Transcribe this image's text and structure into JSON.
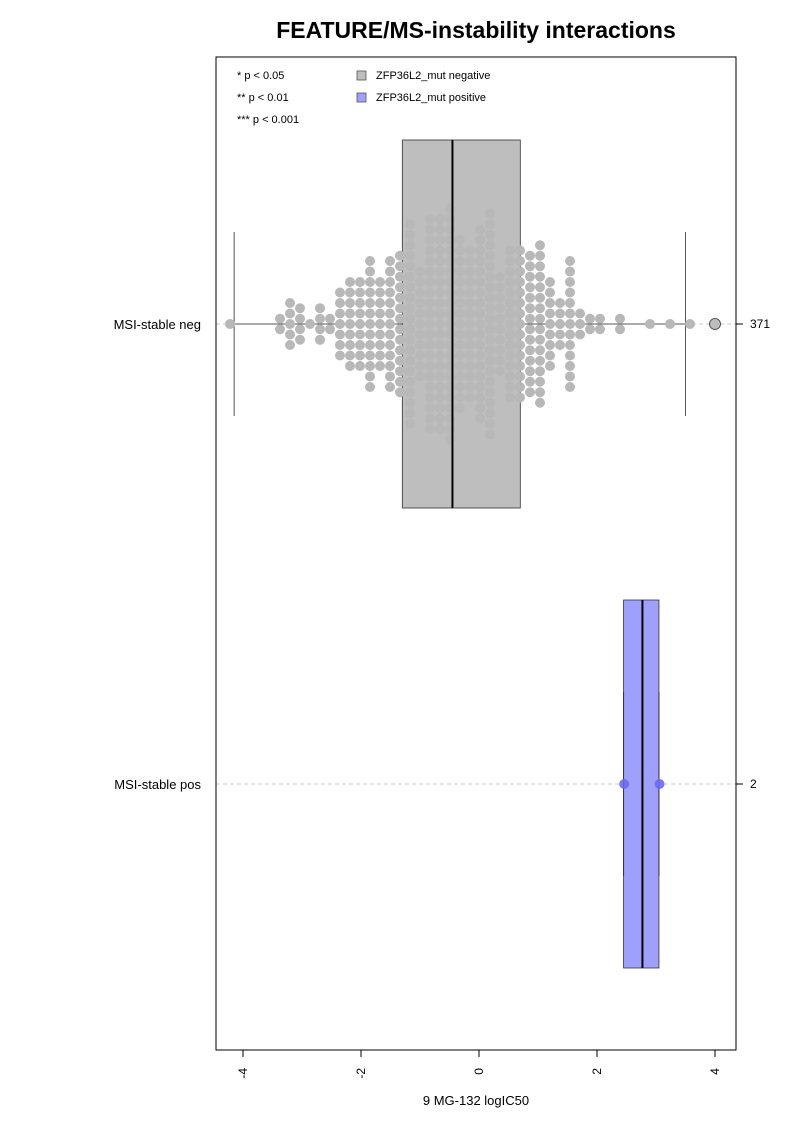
{
  "chart_data": {
    "type": "box-beeswarm",
    "title": "FEATURE/MS-instability interactions",
    "xlabel": "9 MG-132 logIC50",
    "xlim": [
      -4.5,
      4.3
    ],
    "x_ticks": [
      -4,
      -2,
      0,
      2,
      4
    ],
    "x_tick_labels": [
      "-4",
      "-2",
      "0",
      "2",
      "4"
    ],
    "categories": [
      "MSI-stable neg",
      "MSI-stable pos"
    ],
    "counts": [
      "371",
      "2"
    ],
    "significance_legend": [
      "* p < 0.05",
      "** p < 0.01",
      "*** p < 0.001"
    ],
    "series": [
      {
        "name": "ZFP36L2_mut negative",
        "category": "MSI-stable neg",
        "color": "#bebebe",
        "point_color": "#b8b8b8",
        "box": {
          "q1": -1.3,
          "median": -0.45,
          "q3": 0.7,
          "whisker_low": -4.15,
          "whisker_high": 3.5
        },
        "n_points": 371,
        "outliers": [
          4.0
        ]
      },
      {
        "name": "ZFP36L2_mut positive",
        "category": "MSI-stable pos",
        "color": "#9f9ffc",
        "point_color": "#6a6af5",
        "box": {
          "q1": 2.45,
          "median": 2.77,
          "q3": 3.05,
          "whisker_low": 2.45,
          "whisker_high": 3.05
        },
        "points": [
          2.46,
          3.06
        ]
      }
    ],
    "grid": false,
    "legend_position": "top-left"
  }
}
